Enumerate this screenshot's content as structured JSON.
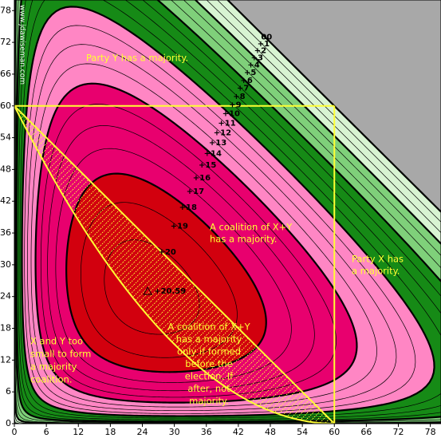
{
  "chart_data": {
    "type": "contour",
    "watermark": "www.jdawiseman.com",
    "xlim": [
      0,
      80
    ],
    "ylim": [
      0,
      80
    ],
    "xticks": [
      0,
      6,
      12,
      18,
      24,
      30,
      36,
      42,
      48,
      54,
      60,
      66,
      72,
      78
    ],
    "yticks": [
      0,
      6,
      12,
      18,
      24,
      30,
      36,
      42,
      48,
      54,
      60,
      66,
      72,
      78
    ],
    "below_color": "#a8a8a8",
    "levels": [
      {
        "value": 0,
        "label": "00",
        "color": "#d8f4d2"
      },
      {
        "value": 1,
        "label": "+1",
        "color": "#d8f4d2"
      },
      {
        "value": 2,
        "label": "+2",
        "color": "#d8f4d2"
      },
      {
        "value": 3,
        "label": "+3",
        "color": "#7fd07a"
      },
      {
        "value": 4,
        "label": "+4",
        "color": "#7fd07a"
      },
      {
        "value": 5,
        "label": "+5",
        "color": "#7fd07a"
      },
      {
        "value": 6,
        "label": "+6",
        "color": "#168a16"
      },
      {
        "value": 7,
        "label": "+7",
        "color": "#168a16"
      },
      {
        "value": 8,
        "label": "+8",
        "color": "#168a16"
      },
      {
        "value": 9,
        "label": "+9",
        "color": "#168a16"
      },
      {
        "value": 10,
        "label": "+10",
        "color": "#ff86c4"
      },
      {
        "value": 11,
        "label": "+11",
        "color": "#ff86c4"
      },
      {
        "value": 12,
        "label": "+12",
        "color": "#ff86c4"
      },
      {
        "value": 13,
        "label": "+13",
        "color": "#ff86c4"
      },
      {
        "value": 14,
        "label": "+14",
        "color": "#e8006e"
      },
      {
        "value": 15,
        "label": "+15",
        "color": "#e8006e"
      },
      {
        "value": 16,
        "label": "+16",
        "color": "#e8006e"
      },
      {
        "value": 17,
        "label": "+17",
        "color": "#e8006e"
      },
      {
        "value": 18,
        "label": "+18",
        "color": "#d2000e"
      },
      {
        "value": 19,
        "label": "+19",
        "color": "#d2000e"
      },
      {
        "value": 20,
        "label": "+20",
        "color": "#d2000e"
      }
    ],
    "peak": {
      "x": 25,
      "y": 25,
      "value": 20.59,
      "label": "+20.59"
    },
    "majority": 60,
    "line_color": "#ffff33",
    "annotations": [
      {
        "lines": [
          "Party Y has a majority."
        ]
      },
      {
        "lines": [
          "A coalition of X+Y",
          "has a majority."
        ]
      },
      {
        "lines": [
          "Party X has",
          "a majority."
        ]
      },
      {
        "lines": [
          "A coalition of X+Y",
          "has a majority",
          "only if formed",
          "before the",
          "election. If",
          "after, not",
          "majority."
        ]
      },
      {
        "lines": [
          "X and Y too",
          "small to form",
          "a majority",
          "coalition."
        ]
      }
    ]
  }
}
